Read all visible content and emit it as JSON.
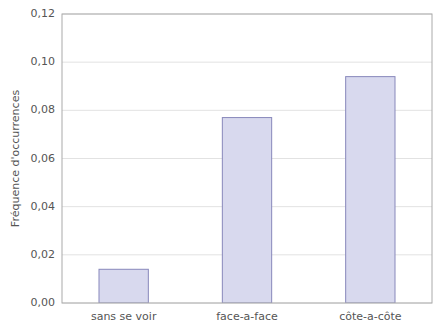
{
  "chart_data": {
    "type": "bar",
    "categories": [
      "sans se voir",
      "face-a-face",
      "côte-a-côte"
    ],
    "values": [
      0.014,
      0.077,
      0.094
    ],
    "color": "#d8d9ee",
    "ylabel": "Fréquence d'occurrences",
    "ylim": [
      0,
      0.12
    ],
    "yticks": [
      {
        "value": 0.0,
        "label": "0,00"
      },
      {
        "value": 0.02,
        "label": "0,02"
      },
      {
        "value": 0.04,
        "label": "0,04"
      },
      {
        "value": 0.06,
        "label": "0,06"
      },
      {
        "value": 0.08,
        "label": "0,08"
      },
      {
        "value": 0.1,
        "label": "0,10"
      },
      {
        "value": 0.12,
        "label": "0,12"
      }
    ],
    "grid": true
  }
}
